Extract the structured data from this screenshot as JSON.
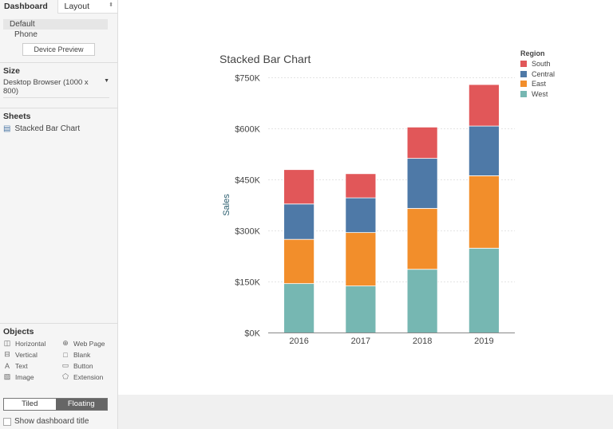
{
  "left_panel": {
    "tabs": [
      "Dashboard",
      "Layout"
    ],
    "devices": [
      "Default",
      "Phone"
    ],
    "device_preview": "Device Preview",
    "size_title": "Size",
    "size_value": "Desktop Browser (1000 x 800)",
    "sheets_title": "Sheets",
    "sheets": [
      "Stacked Bar Chart"
    ],
    "objects_title": "Objects",
    "objects": [
      {
        "label": "Horizontal",
        "icon": "horizontal-icon"
      },
      {
        "label": "Web Page",
        "icon": "globe-icon"
      },
      {
        "label": "Vertical",
        "icon": "vertical-icon"
      },
      {
        "label": "Blank",
        "icon": "blank-icon"
      },
      {
        "label": "Text",
        "icon": "text-icon"
      },
      {
        "label": "Button",
        "icon": "button-icon"
      },
      {
        "label": "Image",
        "icon": "image-icon"
      },
      {
        "label": "Extension",
        "icon": "extension-icon"
      }
    ],
    "layout_modes": [
      "Tiled",
      "Floating"
    ],
    "selected_mode": "Floating",
    "show_title_label": "Show dashboard title",
    "show_title_checked": false
  },
  "chart_data": {
    "type": "bar",
    "stacked": true,
    "title": "Stacked Bar Chart",
    "ylabel": "Sales",
    "xlabel": "",
    "categories": [
      "2016",
      "2017",
      "2018",
      "2019"
    ],
    "ylim": [
      0,
      750000
    ],
    "yticks": [
      0,
      150000,
      300000,
      450000,
      600000,
      750000
    ],
    "ytick_labels": [
      "$0K",
      "$150K",
      "$300K",
      "$450K",
      "$600K",
      "$750K"
    ],
    "grid": true,
    "legend_title": "Region",
    "legend_placement": "top-right",
    "legend_order": [
      "South",
      "Central",
      "East",
      "West"
    ],
    "series": [
      {
        "name": "West",
        "color": "#76b7b2",
        "values": [
          145000,
          138000,
          187000,
          249000
        ]
      },
      {
        "name": "East",
        "color": "#f28e2b",
        "values": [
          130000,
          157000,
          179000,
          213000
        ]
      },
      {
        "name": "Central",
        "color": "#4e79a7",
        "values": [
          104000,
          102000,
          147000,
          146000
        ]
      },
      {
        "name": "South",
        "color": "#e15759",
        "values": [
          101000,
          71000,
          92000,
          122000
        ]
      }
    ]
  }
}
